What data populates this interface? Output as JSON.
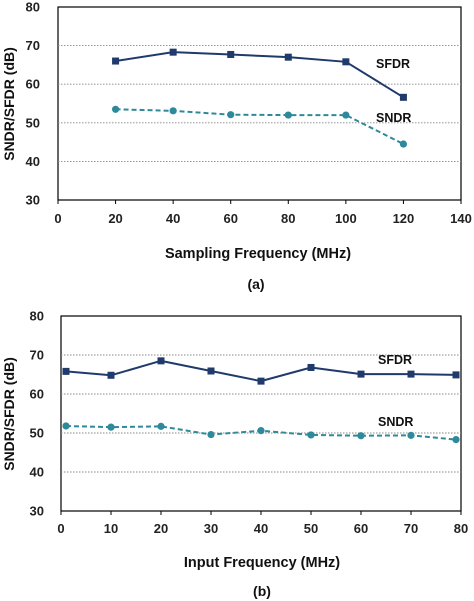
{
  "colors": {
    "sfdr": "#1f3a6b",
    "sndr": "#2e8a9a",
    "grid": "#888888",
    "frame": "#000000"
  },
  "chart_data": [
    {
      "type": "line",
      "caption": "(a)",
      "xlabel": "Sampling Frequency (MHz)",
      "ylabel": "SNDR/SFDR (dB)",
      "xlim": [
        0,
        140
      ],
      "ylim": [
        30,
        80
      ],
      "xticks": [
        "0",
        "20",
        "40",
        "60",
        "80",
        "100",
        "120",
        "140"
      ],
      "yticks": [
        "30",
        "40",
        "50",
        "60",
        "70",
        "80"
      ],
      "grid": "horizontal dotted",
      "series": [
        {
          "name": "SFDR",
          "marker": "square",
          "dash": false,
          "x": [
            20,
            40,
            60,
            80,
            100,
            120
          ],
          "y": [
            66.0,
            68.3,
            67.7,
            67.0,
            65.8,
            56.6
          ]
        },
        {
          "name": "SNDR",
          "marker": "circle",
          "dash": true,
          "x": [
            20,
            40,
            60,
            80,
            100,
            120
          ],
          "y": [
            53.5,
            53.1,
            52.1,
            52.0,
            52.0,
            44.5
          ]
        }
      ]
    },
    {
      "type": "line",
      "caption": "(b)",
      "xlabel": "Input Frequency (MHz)",
      "ylabel": "SNDR/SFDR (dB)",
      "xlim": [
        0,
        80
      ],
      "ylim": [
        30,
        80
      ],
      "xticks": [
        "0",
        "10",
        "20",
        "30",
        "40",
        "50",
        "60",
        "70",
        "80"
      ],
      "yticks": [
        "30",
        "40",
        "50",
        "60",
        "70",
        "80"
      ],
      "grid": "horizontal dotted",
      "series": [
        {
          "name": "SFDR",
          "marker": "square",
          "dash": false,
          "x": [
            1,
            10,
            20,
            30,
            40,
            50,
            60,
            70,
            79
          ],
          "y": [
            65.8,
            64.8,
            68.5,
            65.9,
            63.3,
            66.8,
            65.1,
            65.1,
            64.9
          ]
        },
        {
          "name": "SNDR",
          "marker": "circle",
          "dash": true,
          "x": [
            1,
            10,
            20,
            30,
            40,
            50,
            60,
            70,
            79
          ],
          "y": [
            51.8,
            51.5,
            51.7,
            49.6,
            50.6,
            49.5,
            49.3,
            49.4,
            48.3
          ]
        }
      ]
    }
  ]
}
